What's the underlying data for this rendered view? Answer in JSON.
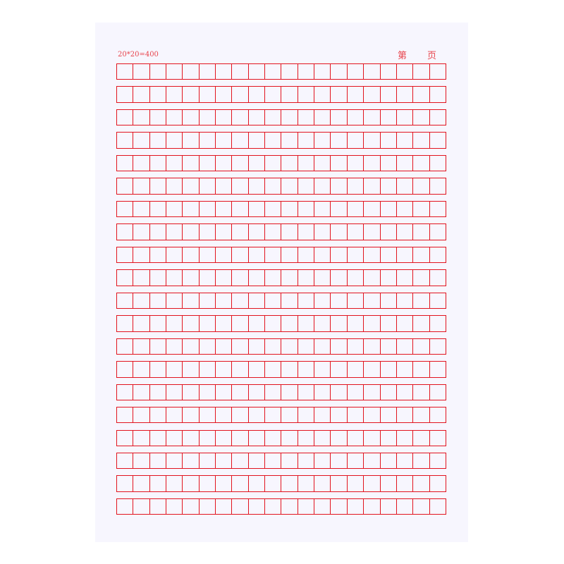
{
  "header": {
    "grid_count": "20*20=400",
    "page_prefix": "第",
    "page_suffix": "页"
  },
  "grid": {
    "rows": 20,
    "columns": 20,
    "line_color": "#e2141f",
    "paper_color": "#f7f6fe"
  }
}
